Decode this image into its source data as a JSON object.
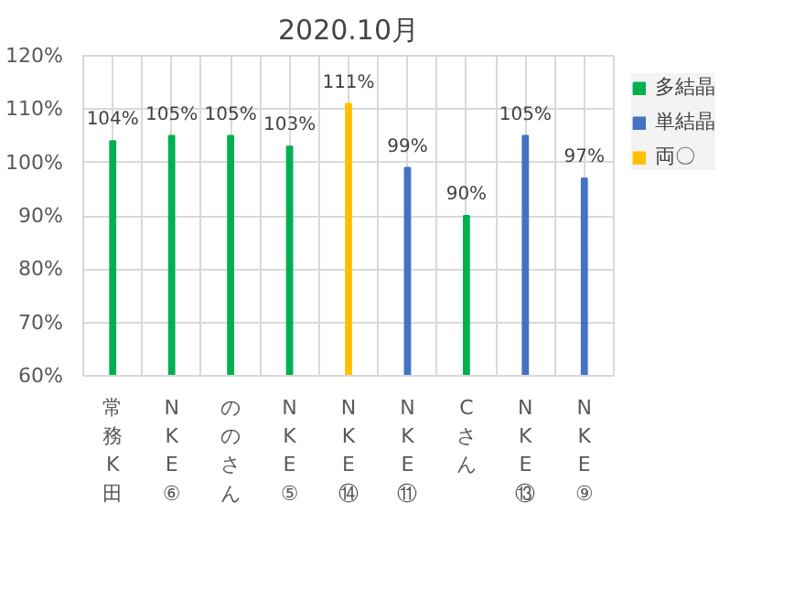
{
  "chart_data": {
    "type": "bar",
    "title": "2020.10月",
    "categories": [
      "常務K田",
      "NKE⑥",
      "ののさん",
      "NKE⑤",
      "NKE⑭",
      "NKE⑪",
      "Cさん",
      "NKE⑬",
      "NKE⑨"
    ],
    "series": [
      {
        "name": "多結晶",
        "color": "#00b050",
        "values": [
          104,
          105,
          105,
          103,
          null,
          null,
          90,
          null,
          null
        ],
        "value_labels": [
          "104%",
          "105%",
          "105%",
          "103%",
          null,
          null,
          "90%",
          null,
          null
        ]
      },
      {
        "name": "単結晶",
        "color": "#4472c4",
        "values": [
          null,
          null,
          null,
          null,
          null,
          99,
          null,
          105,
          97
        ],
        "value_labels": [
          null,
          null,
          null,
          null,
          null,
          "99%",
          null,
          "105%",
          "97%"
        ]
      },
      {
        "name": "両〇",
        "color": "#ffc000",
        "values": [
          null,
          null,
          null,
          null,
          111,
          null,
          null,
          null,
          null
        ],
        "value_labels": [
          null,
          null,
          null,
          null,
          "111%",
          null,
          null,
          null,
          null
        ]
      }
    ],
    "ylim": [
      60,
      120
    ],
    "yticks": [
      {
        "value": 60,
        "label": "60%"
      },
      {
        "value": 70,
        "label": "70%"
      },
      {
        "value": 80,
        "label": "80%"
      },
      {
        "value": 90,
        "label": "90%"
      },
      {
        "value": 100,
        "label": "100%"
      },
      {
        "value": 110,
        "label": "110%"
      },
      {
        "value": 120,
        "label": "120%"
      }
    ],
    "grid": true,
    "legend": "top right"
  }
}
